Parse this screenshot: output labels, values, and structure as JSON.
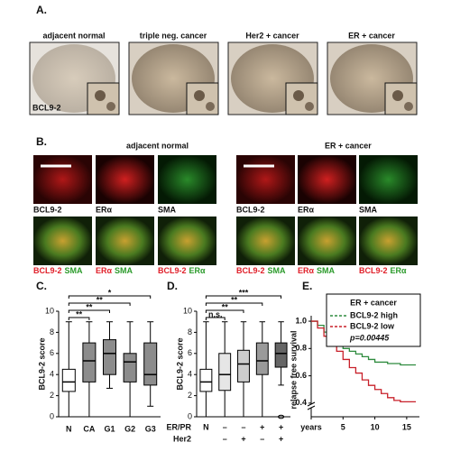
{
  "panel_a": {
    "label": "A.",
    "titles": [
      "adjacent normal",
      "triple neg. cancer",
      "Her2 + cancer",
      "ER + cancer"
    ],
    "stain": "BCL9-2"
  },
  "panel_b": {
    "label": "B.",
    "groups": [
      "adjacent normal",
      "ER + cancer"
    ],
    "channels": [
      "BCL9-2",
      "ERα",
      "SMA"
    ],
    "channel_colors": [
      "#e0202a",
      "#e0202a",
      "#2a9a2a"
    ],
    "merges": [
      [
        "BCL9-2",
        "SMA"
      ],
      [
        "ERα",
        "SMA"
      ],
      [
        "BCL9-2",
        "ERα"
      ]
    ]
  },
  "chart_data": [
    {
      "type": "box",
      "panel_label": "C.",
      "ylabel": "BCL9-2 score",
      "categories": [
        "N",
        "CA",
        "G1",
        "G2",
        "G3"
      ],
      "boxes": [
        {
          "min": 0,
          "q1": 2.4,
          "median": 3.3,
          "q3": 4.5,
          "max": 9
        },
        {
          "min": 0,
          "q1": 3.3,
          "median": 5.3,
          "q3": 7,
          "max": 9
        },
        {
          "min": 2.7,
          "q1": 4,
          "median": 6,
          "q3": 7.3,
          "max": 9
        },
        {
          "min": 0,
          "q1": 3.3,
          "median": 5.2,
          "q3": 6,
          "max": 9
        },
        {
          "min": 1,
          "q1": 3,
          "median": 4,
          "q3": 7,
          "max": 9
        }
      ],
      "colors": [
        "#ffffff",
        "#8c8c8c",
        "#8c8c8c",
        "#8c8c8c",
        "#8c8c8c"
      ],
      "significance": [
        "**",
        "**",
        "**",
        "*"
      ],
      "ylim": [
        0,
        10
      ],
      "yticks": [
        0,
        2,
        4,
        6,
        8,
        10
      ]
    },
    {
      "type": "box",
      "panel_label": "D.",
      "ylabel": "BCL9-2 score",
      "row_labels": [
        "ER/PR",
        "Her2"
      ],
      "er_pr": [
        "N",
        "–",
        "–",
        "+",
        "+"
      ],
      "her2": [
        null,
        "–",
        "+",
        "–",
        "+"
      ],
      "boxes": [
        {
          "min": 0,
          "q1": 2.4,
          "median": 3.3,
          "q3": 4.5,
          "max": 9
        },
        {
          "min": 0,
          "q1": 2.5,
          "median": 4,
          "q3": 6,
          "max": 9
        },
        {
          "min": 0,
          "q1": 3.3,
          "median": 5,
          "q3": 6.3,
          "max": 9
        },
        {
          "min": 0,
          "q1": 4,
          "median": 5.3,
          "q3": 7,
          "max": 9
        },
        {
          "min": 3,
          "q1": 4.7,
          "median": 6,
          "q3": 7,
          "max": 9,
          "outliers": [
            0
          ]
        }
      ],
      "colors": [
        "#ffffff",
        "#e6e6e6",
        "#cccccc",
        "#9a9a9a",
        "#666666"
      ],
      "significance": [
        "n.s.",
        "**",
        "**",
        "***"
      ],
      "ylim": [
        0,
        10
      ],
      "yticks": [
        0,
        2,
        4,
        6,
        8,
        10
      ]
    },
    {
      "type": "line",
      "panel_label": "E.",
      "ylabel": "relapse free survival",
      "legend_title": "ER + cancer",
      "annotation": "p=0.00445",
      "series": [
        {
          "name": "BCL9-2 high",
          "color": "#2e8b3e",
          "x": [
            0,
            1,
            2,
            3,
            4,
            5,
            6,
            7,
            8,
            9,
            10,
            12,
            14,
            16
          ],
          "values": [
            1,
            0.97,
            0.92,
            0.87,
            0.83,
            0.8,
            0.78,
            0.76,
            0.74,
            0.72,
            0.7,
            0.69,
            0.68,
            0.68
          ]
        },
        {
          "name": "BCL9-2 low",
          "color": "#c8202a",
          "x": [
            0,
            1,
            2,
            3,
            4,
            5,
            6,
            7,
            8,
            9,
            10,
            11,
            12,
            13,
            14,
            16
          ],
          "values": [
            1,
            0.95,
            0.89,
            0.83,
            0.78,
            0.72,
            0.66,
            0.62,
            0.57,
            0.53,
            0.5,
            0.47,
            0.44,
            0.42,
            0.41,
            0.41
          ]
        }
      ],
      "xlim": [
        0,
        17
      ],
      "xticks": [
        {
          "value": 0,
          "label": "years"
        },
        5,
        10,
        15
      ],
      "ylim": [
        0.3,
        1.04
      ],
      "yticks": [
        0.4,
        0.6,
        0.8,
        {
          "value": 1,
          "label": "1.0"
        }
      ]
    }
  ]
}
